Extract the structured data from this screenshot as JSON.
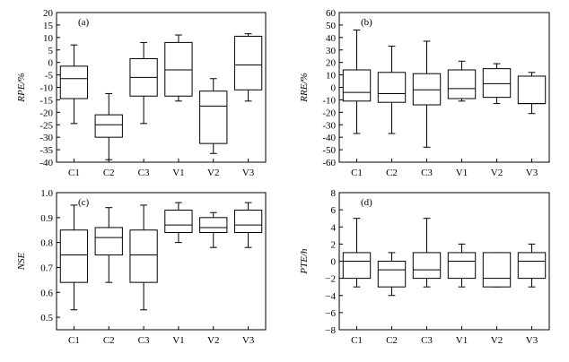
{
  "chart_data": [
    {
      "panel": "(a)",
      "type": "box",
      "ylabel": "RPE/%",
      "ylim": [
        -40,
        20
      ],
      "yticks": [
        -40,
        -35,
        -30,
        -25,
        -20,
        -15,
        -10,
        -5,
        0,
        5,
        10,
        15,
        20
      ],
      "ytick_labels": [
        "-40",
        "-35",
        "-30",
        "-25",
        "-20",
        "-15",
        "-10",
        "-5",
        "0",
        "5",
        "10",
        "15",
        "20"
      ],
      "categories": [
        "C1",
        "C2",
        "C3",
        "V1",
        "V2",
        "V3"
      ],
      "boxes": [
        {
          "min": -24.5,
          "q1": -14.5,
          "median": -6.5,
          "q3": -1.5,
          "max": 7
        },
        {
          "min": -39,
          "q1": -30,
          "median": -25,
          "q3": -21,
          "max": -12.5
        },
        {
          "min": -24.5,
          "q1": -13.5,
          "median": -6,
          "q3": 1.5,
          "max": 8
        },
        {
          "min": -15.5,
          "q1": -13.5,
          "median": -3,
          "q3": 8,
          "max": 11
        },
        {
          "min": -36.5,
          "q1": -32.5,
          "median": -17.5,
          "q3": -11.5,
          "max": -6.5
        },
        {
          "min": -15.5,
          "q1": -11,
          "median": -1,
          "q3": 10.5,
          "max": 11.5
        }
      ]
    },
    {
      "panel": "(b)",
      "type": "box",
      "ylabel": "RRE/%",
      "ylim": [
        -60,
        60
      ],
      "yticks": [
        -60,
        -50,
        -40,
        -30,
        -20,
        -10,
        0,
        10,
        20,
        30,
        40,
        50,
        60
      ],
      "ytick_labels": [
        "-60",
        "-50",
        "-40",
        "-30",
        "-20",
        "-10",
        "0",
        "10",
        "20",
        "30",
        "40",
        "50",
        "60"
      ],
      "categories": [
        "C1",
        "C2",
        "C3",
        "V1",
        "V2",
        "V3"
      ],
      "boxes": [
        {
          "min": -37,
          "q1": -11,
          "median": -4,
          "q3": 14,
          "max": 46
        },
        {
          "min": -37,
          "q1": -12,
          "median": -5,
          "q3": 12,
          "max": 33
        },
        {
          "min": -48,
          "q1": -14,
          "median": -2,
          "q3": 11,
          "max": 37
        },
        {
          "min": -11,
          "q1": -9,
          "median": -1,
          "q3": 14,
          "max": 21
        },
        {
          "min": -13,
          "q1": -8,
          "median": 3,
          "q3": 15,
          "max": 19
        },
        {
          "min": -21,
          "q1": -13,
          "median": -13,
          "q3": 9,
          "max": 12
        }
      ]
    },
    {
      "panel": "(c)",
      "type": "box",
      "ylabel": "NSE",
      "ylim": [
        0.45,
        1.0
      ],
      "yticks": [
        0.5,
        0.6,
        0.7,
        0.8,
        0.9,
        1.0
      ],
      "ytick_labels": [
        "0.5",
        "0.6",
        "0.7",
        "0.8",
        "0.9",
        "1.0"
      ],
      "categories": [
        "C1",
        "C2",
        "C3",
        "V1",
        "V2",
        "V3"
      ],
      "boxes": [
        {
          "min": 0.53,
          "q1": 0.64,
          "median": 0.75,
          "q3": 0.85,
          "max": 0.95
        },
        {
          "min": 0.64,
          "q1": 0.75,
          "median": 0.82,
          "q3": 0.86,
          "max": 0.94
        },
        {
          "min": 0.53,
          "q1": 0.64,
          "median": 0.75,
          "q3": 0.85,
          "max": 0.95
        },
        {
          "min": 0.8,
          "q1": 0.84,
          "median": 0.87,
          "q3": 0.93,
          "max": 0.96
        },
        {
          "min": 0.78,
          "q1": 0.84,
          "median": 0.86,
          "q3": 0.9,
          "max": 0.92
        },
        {
          "min": 0.78,
          "q1": 0.84,
          "median": 0.87,
          "q3": 0.93,
          "max": 0.96
        }
      ]
    },
    {
      "panel": "(d)",
      "type": "box",
      "ylabel": "PTE/h",
      "ylim": [
        -8,
        8
      ],
      "yticks": [
        -8,
        -6,
        -4,
        -2,
        0,
        2,
        4,
        6,
        8
      ],
      "ytick_labels": [
        "−8",
        "−6",
        "−4",
        "−2",
        "0",
        "2",
        "4",
        "6",
        "8"
      ],
      "categories": [
        "C1",
        "C2",
        "C3",
        "V1",
        "V2",
        "V3"
      ],
      "boxes": [
        {
          "min": -3,
          "q1": -2,
          "median": 0,
          "q3": 1,
          "max": 5
        },
        {
          "min": -4,
          "q1": -3,
          "median": -1,
          "q3": 0,
          "max": 1
        },
        {
          "min": -3,
          "q1": -2,
          "median": -1,
          "q3": 1,
          "max": 5
        },
        {
          "min": -3,
          "q1": -2,
          "median": 0,
          "q3": 1,
          "max": 2
        },
        {
          "min": -3,
          "q1": -3,
          "median": -2,
          "q3": 1,
          "max": 1
        },
        {
          "min": -3,
          "q1": -2,
          "median": 0,
          "q3": 1,
          "max": 2
        }
      ]
    }
  ]
}
